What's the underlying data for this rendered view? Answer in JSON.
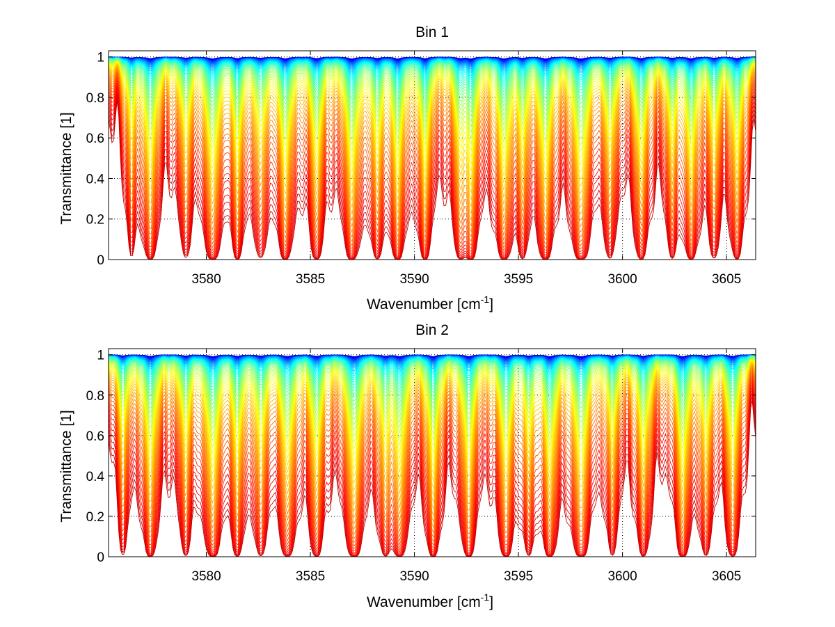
{
  "chart_data": [
    {
      "type": "line",
      "title": "Bin 1",
      "xlabel": "Wavenumber [cm",
      "xlabel_sup": "-1",
      "xlabel_close": "]",
      "ylabel": "Transmittance [1]",
      "xlim": [
        3575.3,
        3606.4
      ],
      "ylim": [
        0,
        1.03
      ],
      "xticks": [
        3580,
        3585,
        3590,
        3595,
        3600,
        3605
      ],
      "yticks": [
        0,
        0.2,
        0.4,
        0.6,
        0.8,
        1
      ],
      "xtick_labels": [
        "3580",
        "3585",
        "3590",
        "3595",
        "3600",
        "3605"
      ],
      "ytick_labels": [
        "0",
        "0.2",
        "0.4",
        "0.6",
        "0.8",
        "1"
      ],
      "grid": true,
      "colormap": "jet",
      "series_count": 70,
      "absorption_lines": [
        {
          "x": 3576.4,
          "depth": 0.45,
          "width": 0.16
        },
        {
          "x": 3577.3,
          "depth": 0.8,
          "width": 0.22
        },
        {
          "x": 3579.0,
          "depth": 0.5,
          "width": 0.2
        },
        {
          "x": 3580.3,
          "depth": 0.9,
          "width": 0.22
        },
        {
          "x": 3581.5,
          "depth": 0.7,
          "width": 0.18
        },
        {
          "x": 3582.6,
          "depth": 0.55,
          "width": 0.2
        },
        {
          "x": 3583.8,
          "depth": 0.8,
          "width": 0.22
        },
        {
          "x": 3585.3,
          "depth": 0.75,
          "width": 0.2
        },
        {
          "x": 3587.0,
          "depth": 0.9,
          "width": 0.22
        },
        {
          "x": 3588.2,
          "depth": 0.6,
          "width": 0.2
        },
        {
          "x": 3589.2,
          "depth": 0.85,
          "width": 0.2
        },
        {
          "x": 3590.5,
          "depth": 0.8,
          "width": 0.18
        },
        {
          "x": 3592.2,
          "depth": 0.6,
          "width": 0.2
        },
        {
          "x": 3592.7,
          "depth": 0.85,
          "width": 0.18
        },
        {
          "x": 3594.3,
          "depth": 0.85,
          "width": 0.22
        },
        {
          "x": 3595.2,
          "depth": 0.55,
          "width": 0.18
        },
        {
          "x": 3596.3,
          "depth": 0.9,
          "width": 0.2
        },
        {
          "x": 3598.0,
          "depth": 0.95,
          "width": 0.24
        },
        {
          "x": 3599.4,
          "depth": 0.6,
          "width": 0.18
        },
        {
          "x": 3600.9,
          "depth": 0.75,
          "width": 0.2
        },
        {
          "x": 3602.4,
          "depth": 0.55,
          "width": 0.18
        },
        {
          "x": 3603.3,
          "depth": 0.8,
          "width": 0.2
        },
        {
          "x": 3604.4,
          "depth": 0.55,
          "width": 0.18
        },
        {
          "x": 3605.5,
          "depth": 0.7,
          "width": 0.2
        }
      ]
    },
    {
      "type": "line",
      "title": "Bin 2",
      "xlabel": "Wavenumber [cm",
      "xlabel_sup": "-1",
      "xlabel_close": "]",
      "ylabel": "Transmittance [1]",
      "xlim": [
        3575.3,
        3606.4
      ],
      "ylim": [
        0,
        1.03
      ],
      "xticks": [
        3580,
        3585,
        3590,
        3595,
        3600,
        3605
      ],
      "yticks": [
        0,
        0.2,
        0.4,
        0.6,
        0.8,
        1
      ],
      "xtick_labels": [
        "3580",
        "3585",
        "3590",
        "3595",
        "3600",
        "3605"
      ],
      "ytick_labels": [
        "0",
        "0.2",
        "0.4",
        "0.6",
        "0.8",
        "1"
      ],
      "grid": true,
      "colormap": "jet",
      "series_count": 70,
      "absorption_lines": [
        {
          "x": 3576.0,
          "depth": 0.5,
          "width": 0.18
        },
        {
          "x": 3577.3,
          "depth": 0.8,
          "width": 0.22
        },
        {
          "x": 3579.0,
          "depth": 0.55,
          "width": 0.2
        },
        {
          "x": 3580.3,
          "depth": 0.9,
          "width": 0.22
        },
        {
          "x": 3581.5,
          "depth": 0.7,
          "width": 0.18
        },
        {
          "x": 3582.6,
          "depth": 0.6,
          "width": 0.2
        },
        {
          "x": 3583.9,
          "depth": 0.8,
          "width": 0.22
        },
        {
          "x": 3585.3,
          "depth": 0.75,
          "width": 0.2
        },
        {
          "x": 3587.1,
          "depth": 0.95,
          "width": 0.22
        },
        {
          "x": 3588.6,
          "depth": 0.6,
          "width": 0.2
        },
        {
          "x": 3589.3,
          "depth": 0.85,
          "width": 0.2
        },
        {
          "x": 3590.9,
          "depth": 0.9,
          "width": 0.18
        },
        {
          "x": 3592.6,
          "depth": 0.85,
          "width": 0.2
        },
        {
          "x": 3594.4,
          "depth": 0.8,
          "width": 0.22
        },
        {
          "x": 3595.5,
          "depth": 0.55,
          "width": 0.18
        },
        {
          "x": 3596.5,
          "depth": 0.85,
          "width": 0.2
        },
        {
          "x": 3598.0,
          "depth": 0.9,
          "width": 0.24
        },
        {
          "x": 3599.5,
          "depth": 0.55,
          "width": 0.18
        },
        {
          "x": 3601.0,
          "depth": 0.7,
          "width": 0.2
        },
        {
          "x": 3602.9,
          "depth": 0.9,
          "width": 0.2
        },
        {
          "x": 3604.0,
          "depth": 0.6,
          "width": 0.18
        },
        {
          "x": 3605.3,
          "depth": 0.75,
          "width": 0.2
        }
      ]
    }
  ]
}
